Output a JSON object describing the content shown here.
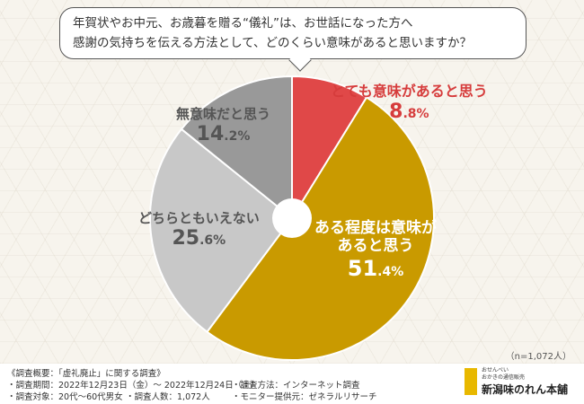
{
  "question": {
    "line1": "年賀状やお中元、お歳暮を贈る“儀礼”は、お世話になった方へ",
    "line2": "感謝の気持ちを伝える方法として、どのくらい意味があると思いますか？"
  },
  "chart_data": {
    "type": "pie",
    "donut": true,
    "start": "top",
    "direction": "clockwise",
    "slices": [
      {
        "label": "とても意味があると思う",
        "value": 8.8,
        "int": "8",
        "dec": ".8%",
        "color": "#e04848"
      },
      {
        "label_line1": "ある程度は意味が",
        "label_line2": "あると思う",
        "value": 51.4,
        "int": "51",
        "dec": ".4%",
        "color": "#c99a00"
      },
      {
        "label": "どちらともいえない",
        "value": 25.6,
        "int": "25",
        "dec": ".6%",
        "color": "#c8c8c8"
      },
      {
        "label": "無意味だと思う",
        "value": 14.2,
        "int": "14",
        "dec": ".2%",
        "color": "#999999"
      }
    ],
    "n_note": "（n=1,072人）"
  },
  "footer": {
    "title": "《調査概要：「虚礼廃止」に関する調査》",
    "period": "・調査期間：2022年12月23日（金）〜 2022年12月24日（土）",
    "method": "・調査方法：インターネット調査",
    "target": "・調査対象：20代〜60代男女",
    "count": "・調査人数：1,072人",
    "provider": "・モニター提供元：ゼネラルリサーチ"
  },
  "logo": {
    "small1": "おせんべい",
    "small2": "おかきの通信販売",
    "name": "新潟味のれん本舗"
  }
}
